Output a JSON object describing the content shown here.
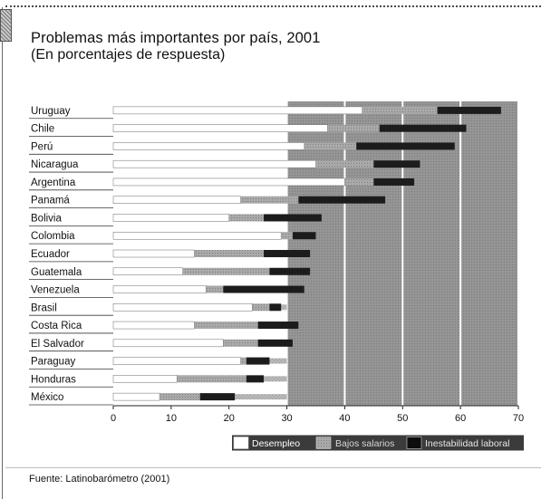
{
  "colors": {
    "desempleo": "#ffffff",
    "bajos_salarios": "#a6a6a6",
    "inestabilidad_laboral": "#1c1c1c",
    "plot_background": "#949494",
    "row_band": "#b8b8b8"
  },
  "chart_data": {
    "type": "bar",
    "stacking": "stacked-horizontal",
    "title": "Problemas más importantes por país, 2001",
    "subtitle": "(En porcentajes de respuesta)",
    "categories": [
      "Uruguay",
      "Chile",
      "Perú",
      "Nicaragua",
      "Argentina",
      "Panamá",
      "Bolivia",
      "Colombia",
      "Ecuador",
      "Guatemala",
      "Venezuela",
      "Brasil",
      "Costa Rica",
      "El Salvador",
      "Paraguay",
      "Honduras",
      "México"
    ],
    "series": [
      {
        "name": "Desempleo",
        "values": [
          43,
          37,
          33,
          35,
          40,
          22,
          20,
          29,
          14,
          12,
          16,
          24,
          14,
          19,
          22,
          11,
          8
        ]
      },
      {
        "name": "Bajos salarios",
        "values": [
          13,
          9,
          9,
          10,
          5,
          10,
          6,
          2,
          12,
          15,
          3,
          3,
          11,
          6,
          1,
          12,
          7
        ]
      },
      {
        "name": "Inestabilidad laboral",
        "values": [
          11,
          15,
          17,
          8,
          7,
          15,
          10,
          4,
          8,
          7,
          14,
          2,
          7,
          6,
          4,
          3,
          6
        ]
      }
    ],
    "xlim": [
      0,
      70
    ],
    "xticks": [
      "0",
      "10",
      "20",
      "30",
      "40",
      "50",
      "60",
      "70"
    ],
    "xlabel": "",
    "ylabel": "",
    "legend_position": "bottom-right",
    "grid": true
  },
  "source": "Fuente: Latinobarómetro (2001)"
}
